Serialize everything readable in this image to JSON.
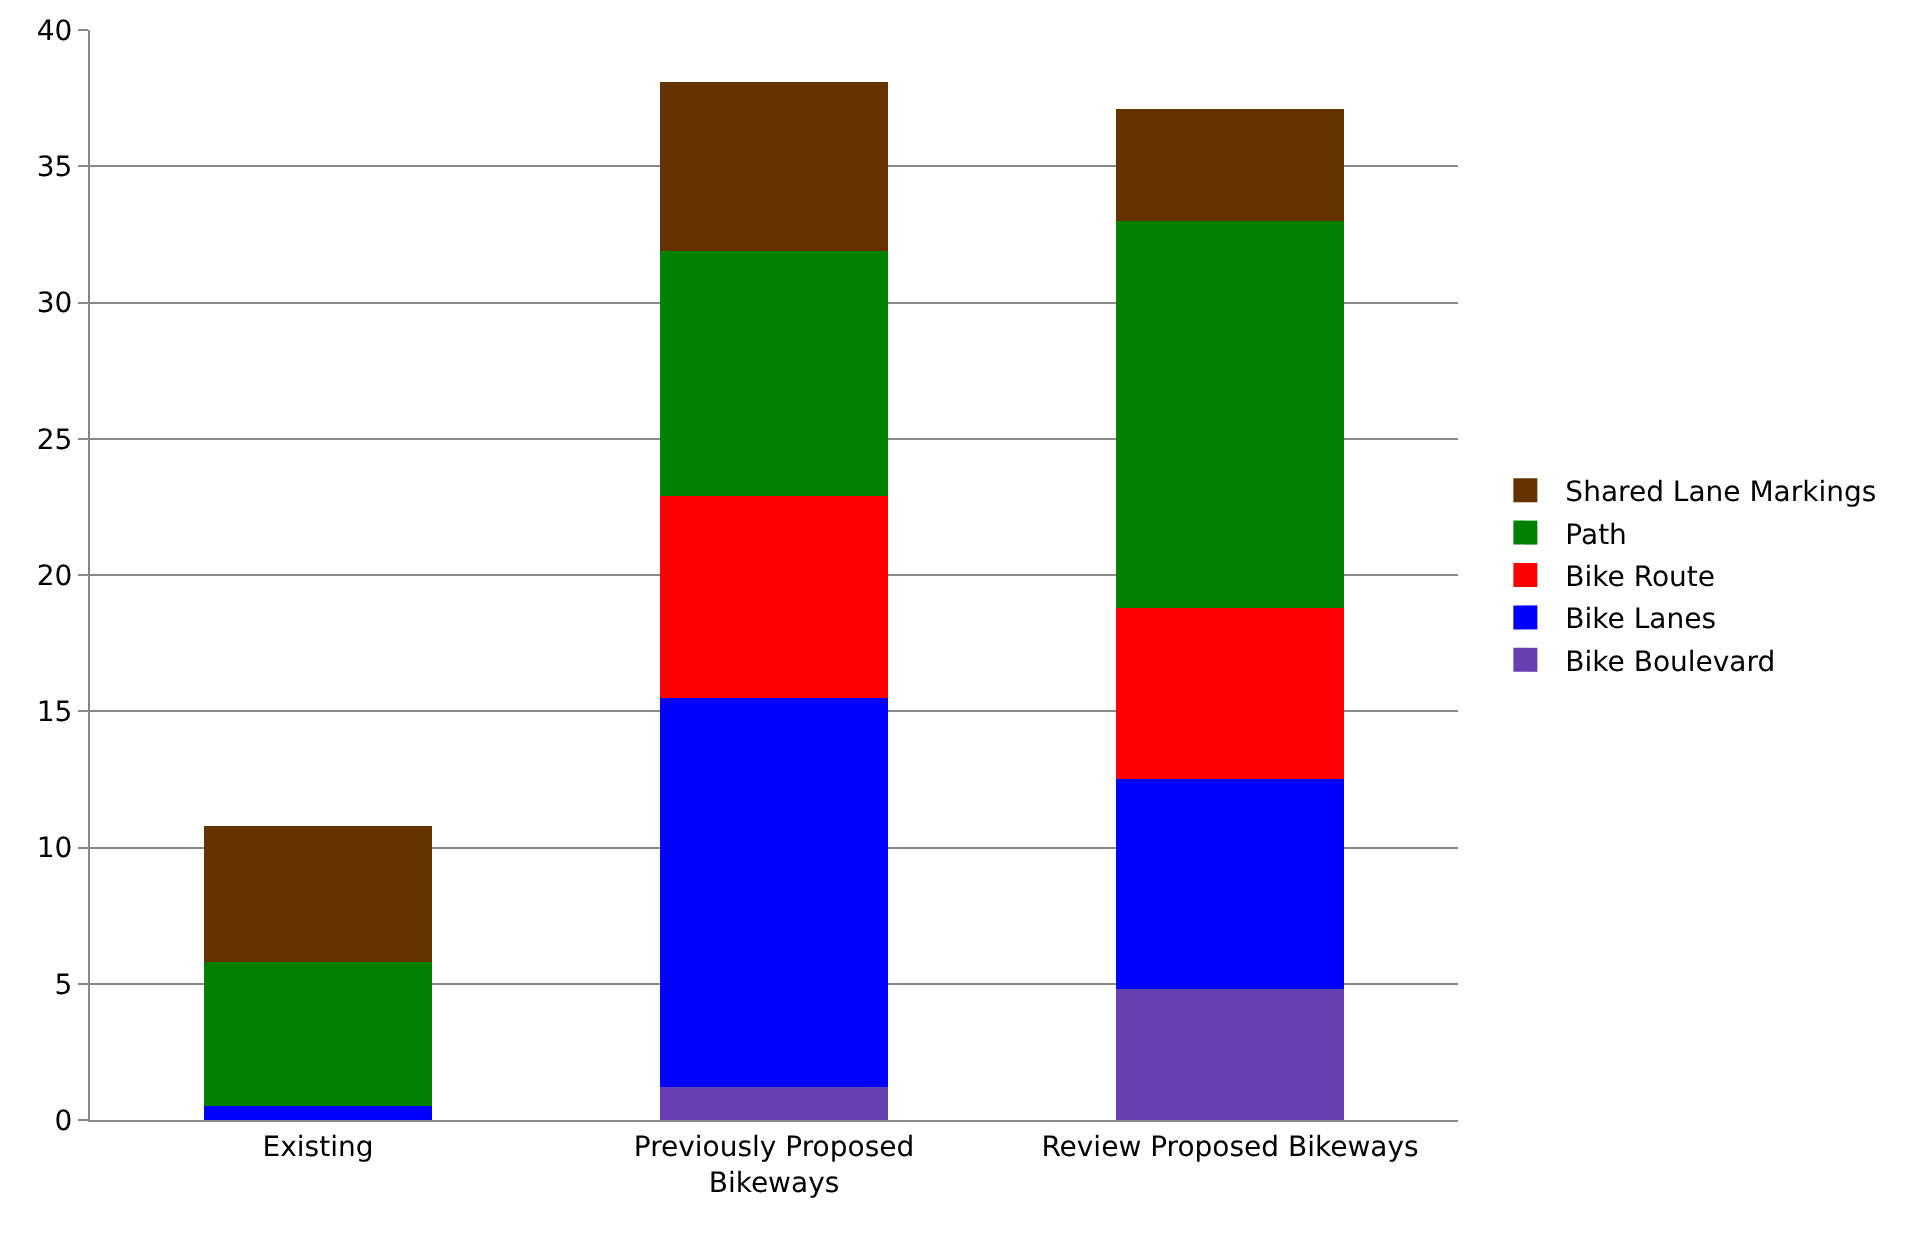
{
  "chart_data": {
    "type": "bar",
    "stacked": true,
    "categories": [
      "Existing",
      "Previously Proposed Bikeways",
      "Review Proposed Bikeways"
    ],
    "series": [
      {
        "name": "Bike Boulevard",
        "color": "#6640b0",
        "values": [
          0,
          1.2,
          4.8
        ]
      },
      {
        "name": "Bike Lanes",
        "color": "#0000ff",
        "values": [
          0.5,
          14.3,
          7.7
        ]
      },
      {
        "name": "Bike Route",
        "color": "#ff0000",
        "values": [
          0,
          7.4,
          6.3
        ]
      },
      {
        "name": "Path",
        "color": "#008000",
        "values": [
          5.3,
          9.0,
          14.2
        ]
      },
      {
        "name": "Shared Lane Markings",
        "color": "#663300",
        "values": [
          5.0,
          6.2,
          4.1
        ]
      }
    ],
    "ylim": [
      0,
      40
    ],
    "yticks": [
      0,
      5,
      10,
      15,
      20,
      25,
      30,
      35,
      40
    ],
    "grid": "y",
    "legend": "right"
  }
}
